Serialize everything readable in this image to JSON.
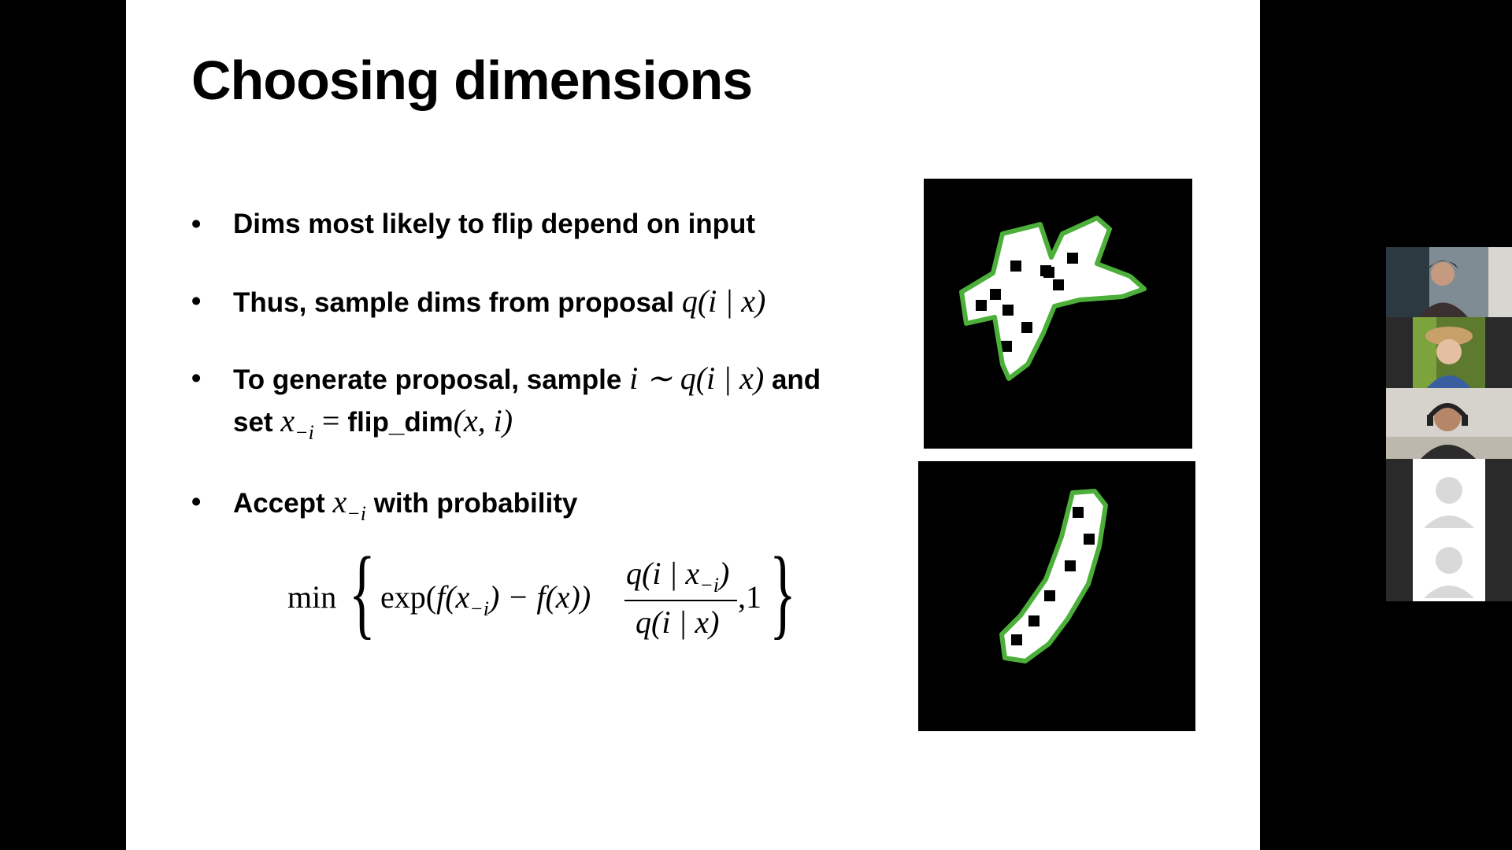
{
  "slide": {
    "title": "Choosing dimensions",
    "bullets": [
      {
        "text": "Dims most likely to flip depend on input"
      },
      {
        "text": "Thus, sample dims from proposal ",
        "math": "q(i | x)"
      },
      {
        "text": "To generate proposal, sample ",
        "math": "i ∼ q(i | x)",
        "after": " and",
        "line2_pre": "set ",
        "line2_var": "x",
        "line2_sub": "−i",
        "line2_eq": " = ",
        "line2_fn": "flip_dim",
        "line2_args": "(x, i)"
      },
      {
        "pre": "Accept ",
        "var": "x",
        "sub": "−i",
        "post": " with probability"
      }
    ],
    "bullet_symbol": "•",
    "formula": {
      "min": "min",
      "left_brace": "{",
      "exp_part_a": "exp(",
      "exp_part_b": "f(x",
      "exp_sub": "−i",
      "exp_part_c": ") − f(x))",
      "num_a": "q(i | x",
      "num_sub": "−i",
      "num_b": ")",
      "den": "q(i | x)",
      "tail": ",1",
      "right_brace": "}"
    }
  },
  "figures": [
    {
      "label": "digit-4-sample",
      "colors": {
        "outline": "#4caf3a",
        "fill": "#ffffff",
        "bg": "#000000"
      }
    },
    {
      "label": "digit-1-sample",
      "colors": {
        "outline": "#4caf3a",
        "fill": "#ffffff",
        "bg": "#000000"
      }
    }
  ],
  "participants": [
    {
      "kind": "video",
      "name": "participant-1"
    },
    {
      "kind": "video",
      "name": "participant-2"
    },
    {
      "kind": "video",
      "name": "participant-3"
    },
    {
      "kind": "avatar",
      "name": "participant-4"
    },
    {
      "kind": "avatar",
      "name": "participant-5"
    }
  ]
}
